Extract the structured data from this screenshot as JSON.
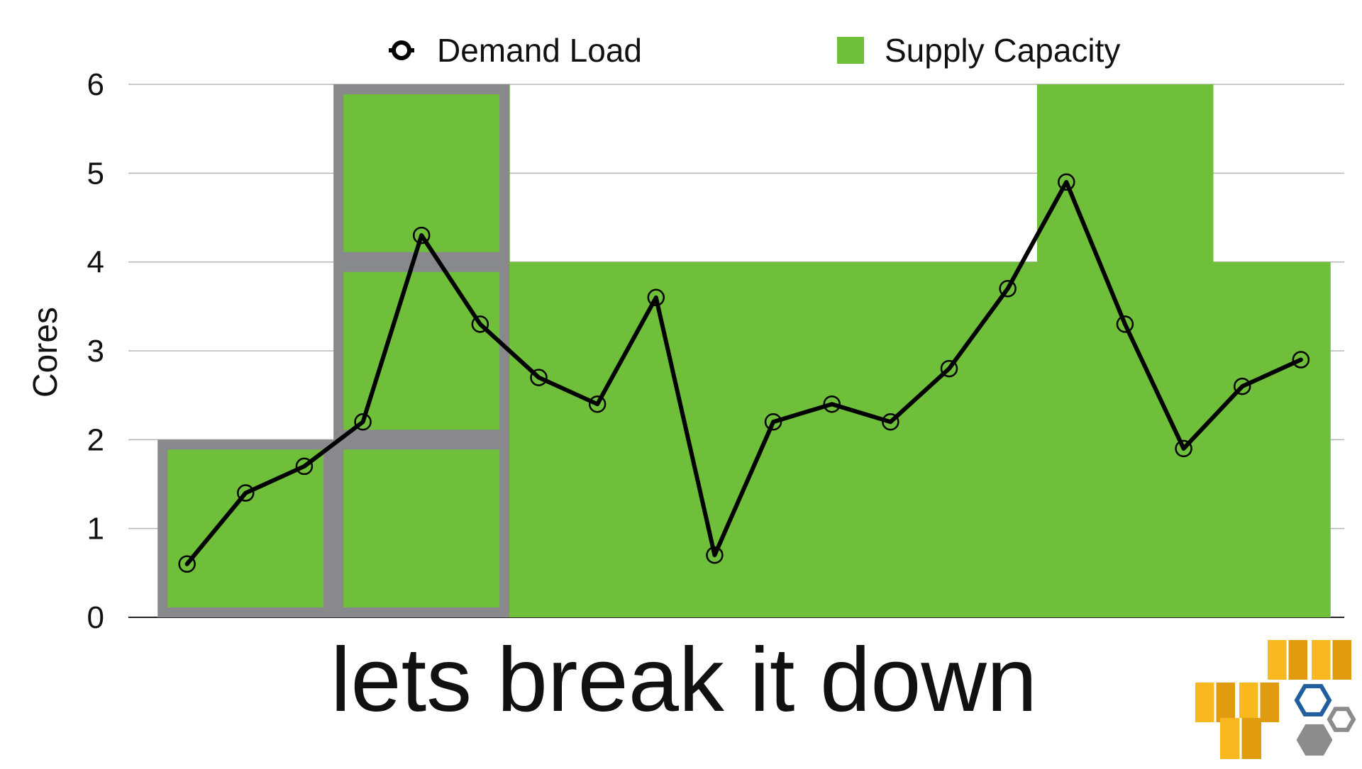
{
  "slide": {
    "caption": "lets break it down"
  },
  "chart_data": {
    "type": "line",
    "title": "",
    "xlabel": "",
    "ylabel": "Cores",
    "ylim": [
      0,
      6
    ],
    "yticks": [
      "0",
      "1",
      "2",
      "3",
      "4",
      "5",
      "6"
    ],
    "grid": true,
    "legend_position": "top-center",
    "x": [
      1,
      2,
      3,
      4,
      5,
      6,
      7,
      8,
      9,
      10,
      11,
      12,
      13,
      14,
      15,
      16,
      17,
      18,
      19,
      20
    ],
    "series": [
      {
        "name": "Demand Load",
        "kind": "line",
        "marker": "circle",
        "color": "#000000",
        "values": [
          0.6,
          1.4,
          1.7,
          2.2,
          4.3,
          3.3,
          2.7,
          2.4,
          3.6,
          0.7,
          2.2,
          2.4,
          2.2,
          2.8,
          3.7,
          4.9,
          3.3,
          1.9,
          2.6,
          2.9
        ]
      },
      {
        "name": "Supply Capacity",
        "kind": "step-area",
        "color": "#6fbf3a",
        "values": [
          2,
          2,
          2,
          6,
          6,
          6,
          4,
          4,
          4,
          4,
          4,
          4,
          4,
          4,
          4,
          6,
          6,
          6,
          4,
          4
        ]
      }
    ],
    "highlight_blocks": {
      "color": "#87898c",
      "blocks": [
        {
          "x_from": 0.5,
          "x_to": 3.5,
          "y_from": 0,
          "y_to": 2
        },
        {
          "x_from": 3.5,
          "x_to": 6.5,
          "y_from": 0,
          "y_to": 2
        },
        {
          "x_from": 3.5,
          "x_to": 6.5,
          "y_from": 2,
          "y_to": 4
        },
        {
          "x_from": 3.5,
          "x_to": 6.5,
          "y_from": 4,
          "y_to": 6
        }
      ]
    }
  },
  "logo": {
    "name": "aws-boxes-logo",
    "colors": {
      "box": "#f8b81e",
      "box_dark": "#e09b0e",
      "hex_blue": "#1f5f9e",
      "hex_gray": "#8c8c8c"
    }
  }
}
